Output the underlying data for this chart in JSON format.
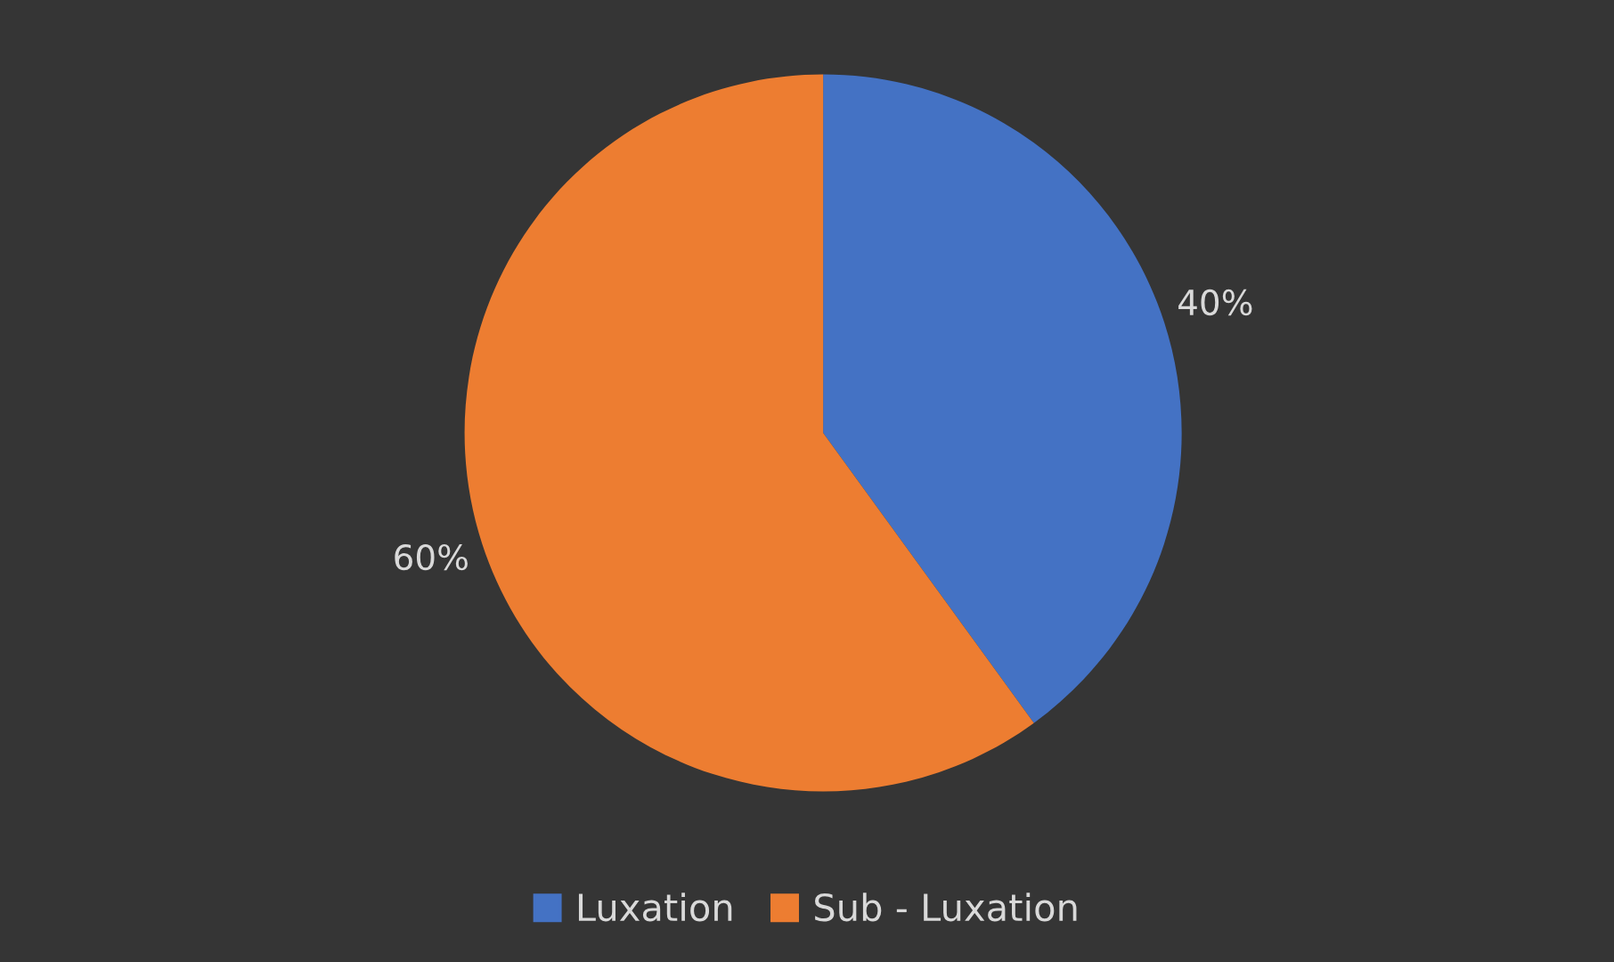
{
  "chart_data": {
    "type": "pie",
    "categories": [
      "Luxation",
      "Sub - Luxation"
    ],
    "values": [
      40,
      60
    ],
    "colors": [
      "#4472c4",
      "#ed7d31"
    ],
    "value_labels": [
      "40%",
      "60%"
    ],
    "legend": "bottom"
  }
}
